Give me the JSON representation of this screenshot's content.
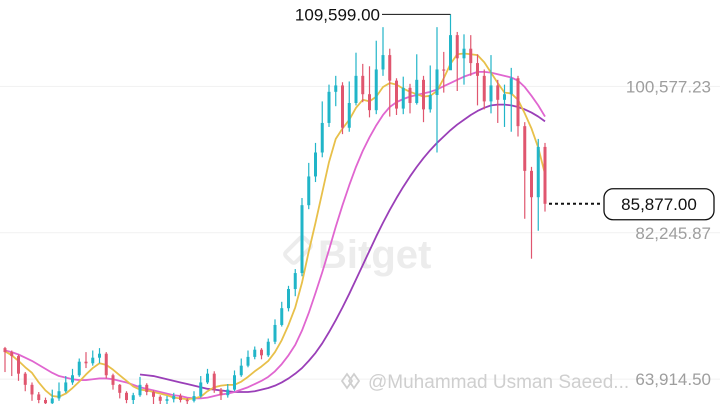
{
  "chart_data": {
    "type": "candlestick",
    "y_axis_labels": [
      {
        "value": 100577.23,
        "text": "100,577.23"
      },
      {
        "value": 82245.87,
        "text": "82,245.87"
      },
      {
        "value": 63914.5,
        "text": "63,914.50"
      }
    ],
    "peak": {
      "value": 109599.0,
      "text": "109,599.00"
    },
    "last_price": {
      "value": 85877.0,
      "text": "85,877.00"
    },
    "ylim": [
      60800,
      111400
    ],
    "grid": true,
    "colors": {
      "up": "#21b5c8",
      "down": "#e0566f",
      "ma_short": "#e8c04a",
      "ma_mid": "#e066d0",
      "ma_long": "#9a3fb8"
    },
    "candles": [
      [
        67800,
        67300,
        67950,
        64800
      ],
      [
        67300,
        66800,
        67500,
        64300
      ],
      [
        66800,
        64600,
        67000,
        63700
      ],
      [
        64600,
        63200,
        64800,
        62400
      ],
      [
        63200,
        62000,
        63500,
        61200
      ],
      [
        62000,
        61300,
        62300,
        60900
      ],
      [
        61300,
        60900,
        61600,
        60800
      ],
      [
        60900,
        61500,
        62600,
        60700
      ],
      [
        61500,
        62400,
        63500,
        61200
      ],
      [
        62400,
        63500,
        64300,
        62200
      ],
      [
        63500,
        64400,
        65200,
        63200
      ],
      [
        64400,
        66100,
        66500,
        64200
      ],
      [
        66100,
        65900,
        67300,
        65300
      ],
      [
        65900,
        66600,
        67500,
        65600
      ],
      [
        66600,
        67100,
        67800,
        65900
      ],
      [
        67100,
        64400,
        67300,
        64000
      ],
      [
        64400,
        63200,
        64600,
        62600
      ],
      [
        63200,
        62200,
        63300,
        61500
      ],
      [
        62200,
        61300,
        62400,
        60900
      ],
      [
        61300,
        61900,
        62200,
        60700
      ],
      [
        61900,
        63200,
        64200,
        61700
      ],
      [
        63200,
        62300,
        63400,
        61900
      ],
      [
        62300,
        61700,
        62500,
        60800
      ],
      [
        61700,
        61200,
        61900,
        60800
      ],
      [
        61200,
        61400,
        61800,
        60800
      ],
      [
        61400,
        61800,
        62200,
        61000
      ],
      [
        61800,
        61300,
        62100,
        61000
      ],
      [
        61300,
        61200,
        61500,
        60800
      ],
      [
        61200,
        61800,
        62400,
        61000
      ],
      [
        61800,
        63500,
        64300,
        61600
      ],
      [
        63500,
        64600,
        65200,
        63300
      ],
      [
        64600,
        62600,
        64900,
        62200
      ],
      [
        62600,
        61900,
        62800,
        61300
      ],
      [
        61900,
        62600,
        63300,
        61600
      ],
      [
        62600,
        64400,
        65000,
        62400
      ],
      [
        64400,
        65600,
        66500,
        64200
      ],
      [
        65600,
        66700,
        67500,
        65400
      ],
      [
        66700,
        67600,
        68000,
        66400
      ],
      [
        67600,
        66900,
        67800,
        66400
      ],
      [
        66900,
        68600,
        69000,
        66700
      ],
      [
        68600,
        70700,
        71400,
        68300
      ],
      [
        70700,
        72800,
        73600,
        70500
      ],
      [
        72800,
        75200,
        75600,
        72400
      ],
      [
        75200,
        77200,
        77700,
        74300
      ],
      [
        77200,
        85700,
        86600,
        76800
      ],
      [
        85700,
        89300,
        91000,
        85200
      ],
      [
        89300,
        92300,
        93500,
        88600
      ],
      [
        92300,
        96000,
        98700,
        91700
      ],
      [
        96000,
        99900,
        100800,
        95500
      ],
      [
        99900,
        100700,
        101900,
        98100
      ],
      [
        100700,
        95400,
        101100,
        94600
      ],
      [
        95400,
        98500,
        101200,
        94900
      ],
      [
        98500,
        101900,
        104800,
        98200
      ],
      [
        101900,
        99600,
        103400,
        98600
      ],
      [
        99600,
        97600,
        103100,
        96700
      ],
      [
        97600,
        102700,
        106300,
        97100
      ],
      [
        102700,
        104500,
        108000,
        101900
      ],
      [
        104500,
        101300,
        105300,
        96800
      ],
      [
        101300,
        97800,
        101600,
        97000
      ],
      [
        97800,
        100400,
        101800,
        97100
      ],
      [
        100400,
        98500,
        100900,
        97200
      ],
      [
        98500,
        101400,
        104600,
        98300
      ],
      [
        101400,
        97700,
        101900,
        96100
      ],
      [
        97700,
        99500,
        103200,
        97300
      ],
      [
        99500,
        102700,
        108000,
        92300
      ],
      [
        102700,
        102600,
        104900,
        99800
      ],
      [
        102600,
        107000,
        109599,
        105000
      ],
      [
        107000,
        104100,
        107400,
        100000
      ],
      [
        104100,
        105300,
        107100,
        100800
      ],
      [
        105300,
        103500,
        107000,
        101900
      ],
      [
        103500,
        101900,
        104600,
        98200
      ],
      [
        101900,
        98700,
        102700,
        97700
      ],
      [
        98700,
        100700,
        104500,
        97200
      ],
      [
        100700,
        98900,
        101400,
        96000
      ],
      [
        98900,
        99600,
        100800,
        95500
      ],
      [
        99600,
        101600,
        102900,
        94900
      ],
      [
        101600,
        95600,
        101900,
        94300
      ],
      [
        95600,
        90000,
        96100,
        84000
      ],
      [
        90000,
        86700,
        90500,
        79000
      ],
      [
        86700,
        93000,
        94000,
        82500
      ],
      [
        93000,
        85877,
        93500,
        84900
      ]
    ],
    "ma_short": [
      67400,
      66900,
      66200,
      65400,
      64700,
      63500,
      62500,
      61800,
      61700,
      62100,
      62800,
      63600,
      64500,
      65300,
      65900,
      65700,
      65100,
      64400,
      63700,
      63000,
      62600,
      62500,
      62300,
      62100,
      61900,
      61600,
      61500,
      61400,
      61500,
      61700,
      62400,
      62900,
      63100,
      63200,
      63200,
      63600,
      64200,
      64900,
      65500,
      66200,
      67300,
      68800,
      70700,
      72900,
      76000,
      79900,
      83500,
      87300,
      91100,
      94000,
      95300,
      96400,
      97900,
      98900,
      98700,
      99300,
      100500,
      101000,
      100800,
      100300,
      99900,
      99600,
      99300,
      99400,
      100000,
      101600,
      103400,
      104600,
      104700,
      104600,
      104500,
      103600,
      102300,
      101000,
      99800,
      99700,
      98900,
      97200,
      95300,
      92900,
      89600
    ],
    "ma_mid": [
      67500,
      67300,
      67000,
      66600,
      66200,
      65700,
      65200,
      64700,
      64300,
      64100,
      63900,
      63800,
      63800,
      63900,
      64000,
      64000,
      63900,
      63700,
      63500,
      63200,
      62900,
      62700,
      62500,
      62300,
      62100,
      61900,
      61800,
      61600,
      61500,
      61500,
      61600,
      61800,
      62000,
      62100,
      62300,
      62600,
      62900,
      63300,
      63700,
      64200,
      64900,
      65800,
      66900,
      68200,
      70000,
      72200,
      74700,
      77300,
      80100,
      83000,
      85700,
      88200,
      90500,
      92500,
      94200,
      95700,
      97000,
      98000,
      98600,
      99000,
      99300,
      99500,
      99700,
      99900,
      100200,
      100600,
      101000,
      101400,
      101800,
      102100,
      102400,
      102400,
      102300,
      102100,
      101900,
      101700,
      101300,
      100500,
      99400,
      98200,
      96800
    ],
    "ma_long": [
      null,
      null,
      null,
      null,
      null,
      null,
      null,
      null,
      null,
      null,
      null,
      null,
      null,
      null,
      null,
      null,
      null,
      null,
      null,
      null,
      64500,
      64400,
      64300,
      64100,
      63900,
      63700,
      63500,
      63300,
      63100,
      62900,
      62700,
      62600,
      62500,
      62400,
      62300,
      62300,
      62300,
      62400,
      62600,
      62800,
      63100,
      63500,
      64000,
      64600,
      65300,
      66200,
      67200,
      68400,
      69800,
      71300,
      72900,
      74600,
      76400,
      78200,
      80000,
      81800,
      83500,
      85100,
      86600,
      88000,
      89300,
      90500,
      91600,
      92600,
      93500,
      94300,
      95100,
      95800,
      96400,
      97000,
      97500,
      97900,
      98200,
      98300,
      98300,
      98200,
      98000,
      97700,
      97300,
      96800,
      96200
    ]
  },
  "watermark": {
    "text": "Bitget"
  },
  "attribution": {
    "text": "@Muhammad Usman Saeed..."
  }
}
